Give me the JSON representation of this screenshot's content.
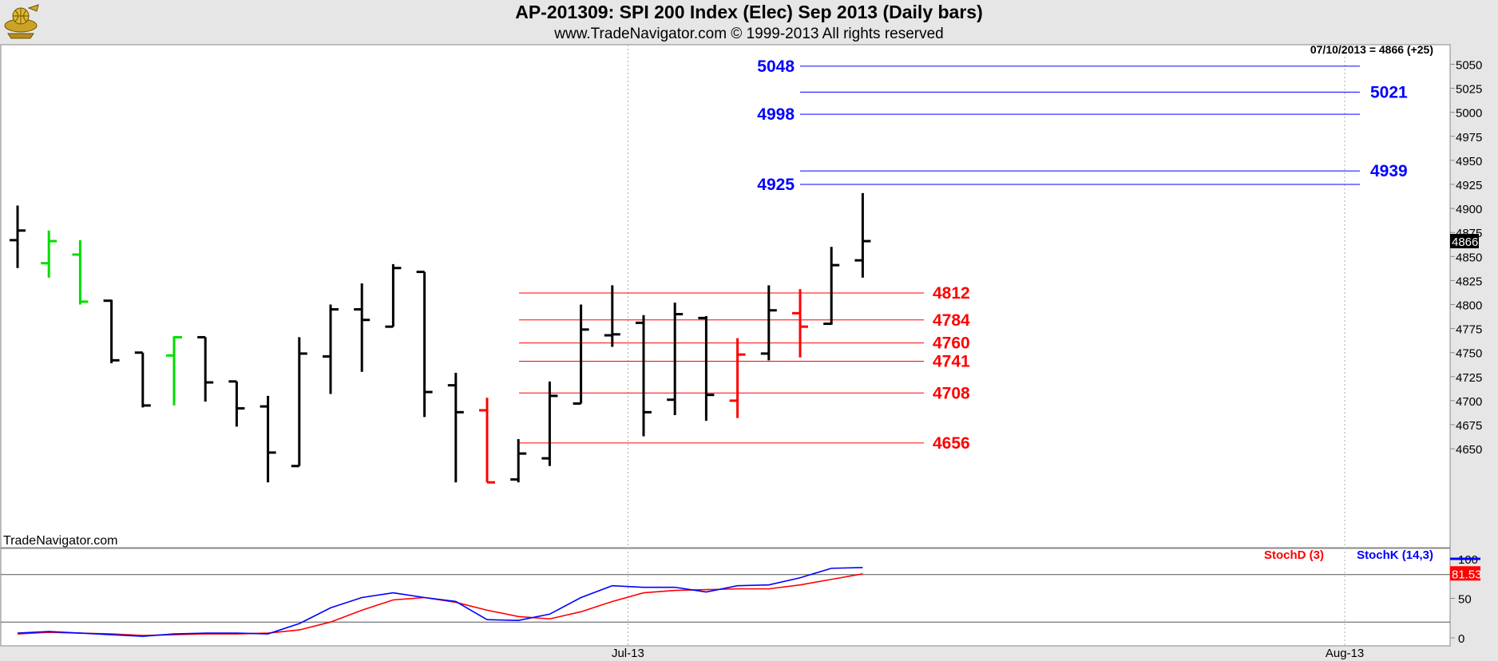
{
  "header": {
    "title": "AP-201309:  SPI 200 Index (Elec) Sep 2013  (Daily bars)",
    "subtitle": "www.TradeNavigator.com © 1999-2013 All rights reserved",
    "logo_icon": "trade-navigator-globe-logo"
  },
  "price_readout": "07/10/2013 = 4866 (+25)",
  "watermark": "TradeNavigator.com",
  "last_price_tag": "4866",
  "colors": {
    "up_bar": "#000000",
    "green_bar": "#00dd00",
    "red_bar": "#ff0000",
    "blue_level": "#0000ff",
    "red_level": "#ff0000",
    "stochD": "#ff0000",
    "stochK": "#0000ff",
    "panel_bg": "#ffffff",
    "frame_bg": "#e6e6e6"
  },
  "chart_data": [
    {
      "type": "ohlc",
      "title": "AP-201309:  SPI 200 Index (Elec) Sep 2013  (Daily bars)",
      "xlabel": "",
      "ylabel": "",
      "ylim": [
        4615,
        5065
      ],
      "y_ticks": [
        4650,
        4675,
        4700,
        4725,
        4750,
        4775,
        4800,
        4825,
        4850,
        4875,
        4900,
        4925,
        4950,
        4975,
        5000,
        5025,
        5050
      ],
      "x_tick_labels": [
        {
          "label": "Jul-13",
          "bar_index": 19.5
        },
        {
          "label": "Aug-13",
          "bar_index": 42.4
        }
      ],
      "grid": "vertical dotted at month starts",
      "bars": [
        {
          "o": 4867,
          "h": 4903,
          "l": 4838,
          "c": 4877,
          "color": "black"
        },
        {
          "o": 4843,
          "h": 4877,
          "l": 4828,
          "c": 4866,
          "color": "green"
        },
        {
          "o": 4852,
          "h": 4867,
          "l": 4800,
          "c": 4803,
          "color": "green"
        },
        {
          "o": 4804,
          "h": 4805,
          "l": 4739,
          "c": 4742,
          "color": "black"
        },
        {
          "o": 4750,
          "h": 4750,
          "l": 4693,
          "c": 4695,
          "color": "black"
        },
        {
          "o": 4747,
          "h": 4767,
          "l": 4695,
          "c": 4766,
          "color": "green"
        },
        {
          "o": 4766,
          "h": 4766,
          "l": 4699,
          "c": 4719,
          "color": "black"
        },
        {
          "o": 4720,
          "h": 4720,
          "l": 4673,
          "c": 4692,
          "color": "black"
        },
        {
          "o": 4694,
          "h": 4705,
          "l": 4615,
          "c": 4646,
          "color": "black"
        },
        {
          "o": 4632,
          "h": 4766,
          "l": 4632,
          "c": 4749,
          "color": "black"
        },
        {
          "o": 4746,
          "h": 4800,
          "l": 4707,
          "c": 4795,
          "color": "black"
        },
        {
          "o": 4795,
          "h": 4822,
          "l": 4730,
          "c": 4784,
          "color": "black"
        },
        {
          "o": 4777,
          "h": 4842,
          "l": 4777,
          "c": 4838,
          "color": "black"
        },
        {
          "o": 4834,
          "h": 4834,
          "l": 4683,
          "c": 4709,
          "color": "black"
        },
        {
          "o": 4716,
          "h": 4729,
          "l": 4615,
          "c": 4688,
          "color": "black"
        },
        {
          "o": 4690,
          "h": 4703,
          "l": 4615,
          "c": 4615,
          "color": "red"
        },
        {
          "o": 4618,
          "h": 4660,
          "l": 4615,
          "c": 4645,
          "color": "black"
        },
        {
          "o": 4640,
          "h": 4720,
          "l": 4632,
          "c": 4705,
          "color": "black"
        },
        {
          "o": 4697,
          "h": 4800,
          "l": 4697,
          "c": 4774,
          "color": "black"
        },
        {
          "o": 4768,
          "h": 4820,
          "l": 4756,
          "c": 4769,
          "color": "black"
        },
        {
          "o": 4781,
          "h": 4789,
          "l": 4663,
          "c": 4688,
          "color": "black"
        },
        {
          "o": 4701,
          "h": 4802,
          "l": 4685,
          "c": 4790,
          "color": "black"
        },
        {
          "o": 4786,
          "h": 4788,
          "l": 4679,
          "c": 4706,
          "color": "black"
        },
        {
          "o": 4700,
          "h": 4765,
          "l": 4682,
          "c": 4748,
          "color": "red"
        },
        {
          "o": 4749,
          "h": 4820,
          "l": 4742,
          "c": 4794,
          "color": "black"
        },
        {
          "o": 4791,
          "h": 4816,
          "l": 4745,
          "c": 4777,
          "color": "red"
        },
        {
          "o": 4780,
          "h": 4860,
          "l": 4779,
          "c": 4841,
          "color": "black"
        },
        {
          "o": 4846,
          "h": 4916,
          "l": 4828,
          "c": 4866,
          "color": "black"
        }
      ],
      "levels": [
        {
          "value": 5048,
          "label": "5048",
          "color": "blue",
          "side": "left"
        },
        {
          "value": 5021,
          "label": "5021",
          "color": "blue",
          "side": "right"
        },
        {
          "value": 4998,
          "label": "4998",
          "color": "blue",
          "side": "left"
        },
        {
          "value": 4939,
          "label": "4939",
          "color": "blue",
          "side": "right"
        },
        {
          "value": 4925,
          "label": "4925",
          "color": "blue",
          "side": "left"
        },
        {
          "value": 4812,
          "label": "4812",
          "color": "red",
          "side": "right"
        },
        {
          "value": 4784,
          "label": "4784",
          "color": "red",
          "side": "right"
        },
        {
          "value": 4760,
          "label": "4760",
          "color": "red",
          "side": "right"
        },
        {
          "value": 4741,
          "label": "4741",
          "color": "red",
          "side": "right"
        },
        {
          "value": 4708,
          "label": "4708",
          "color": "red",
          "side": "right"
        },
        {
          "value": 4656,
          "label": "4656",
          "color": "red",
          "side": "right"
        }
      ]
    },
    {
      "type": "line",
      "title": "",
      "ylim": [
        0,
        100
      ],
      "y_ticks": [
        0,
        50,
        100
      ],
      "reference_lines": [
        20,
        80
      ],
      "current_value_tag": "81.53",
      "legend": "top-right",
      "series": [
        {
          "name": "StochD (3)",
          "color": "red",
          "values": [
            5,
            7,
            6,
            5,
            3,
            4,
            5,
            5,
            6,
            10,
            20,
            35,
            48,
            51,
            45,
            35,
            27,
            24,
            33,
            46,
            57,
            60,
            61,
            62,
            62,
            67,
            74,
            81
          ]
        },
        {
          "name": "StochK (14,3)",
          "color": "blue",
          "values": [
            6,
            8,
            6,
            4,
            2,
            5,
            6,
            6,
            5,
            18,
            38,
            51,
            57,
            51,
            46,
            23,
            22,
            30,
            51,
            66,
            64,
            64,
            58,
            66,
            67,
            76,
            88,
            89
          ]
        }
      ]
    }
  ]
}
